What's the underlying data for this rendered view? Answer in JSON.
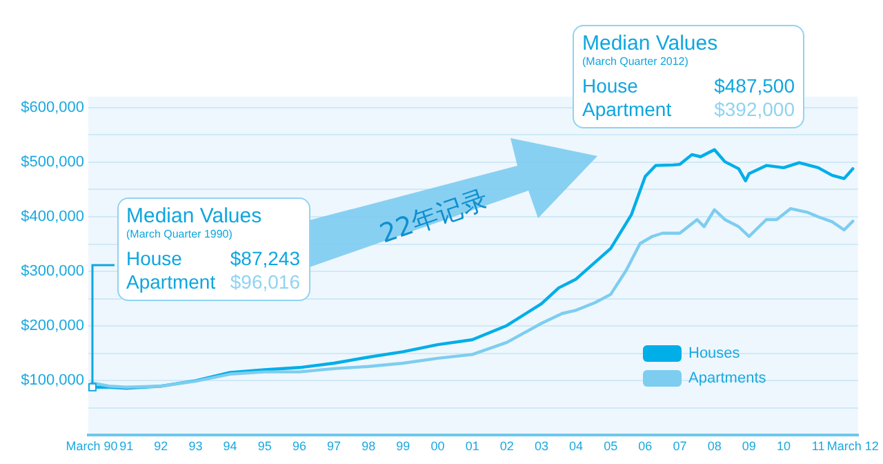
{
  "chart_data": {
    "type": "line",
    "x": [
      1990,
      1990.5,
      1991,
      1992,
      1993,
      1994,
      1995,
      1996,
      1997,
      1998,
      1999,
      2000,
      2001,
      2002,
      2003,
      2003.5,
      2004,
      2005,
      2005.6,
      2006,
      2006.3,
      2006.8,
      2007,
      2007.35,
      2007.6,
      2008,
      2008.3,
      2008.7,
      2008.9,
      2009,
      2009.5,
      2010,
      2010.45,
      2011,
      2011.4,
      2011.75,
      2012
    ],
    "series": [
      {
        "name": "Houses",
        "color": "#00aee8",
        "values": [
          88000,
          88000,
          86000,
          90000,
          100000,
          115000,
          120000,
          124000,
          132000,
          143000,
          153000,
          166000,
          175000,
          201000,
          241000,
          270000,
          286000,
          342000,
          404000,
          474000,
          494000,
          495000,
          496000,
          514000,
          510000,
          523000,
          501000,
          488000,
          466000,
          479000,
          494000,
          490000,
          499000,
          490000,
          476000,
          470000,
          488000
        ]
      },
      {
        "name": "Apartments",
        "color": "#7dcdf0",
        "x": [
          1990,
          1990.5,
          1991,
          1992,
          1993,
          1994,
          1995,
          1996,
          1997,
          1998,
          1999,
          2000,
          2001,
          2002,
          2003,
          2003.6,
          2004,
          2004.55,
          2005,
          2005.45,
          2005.85,
          2006.2,
          2006.5,
          2007,
          2007.5,
          2007.7,
          2008,
          2008.3,
          2008.7,
          2009,
          2009.5,
          2009.8,
          2010.2,
          2010.7,
          2011,
          2011.4,
          2011.75,
          2012
        ],
        "values": [
          96000,
          90000,
          88000,
          90000,
          99000,
          112000,
          116000,
          116000,
          122000,
          126000,
          132000,
          141000,
          148000,
          170000,
          205000,
          223000,
          229000,
          243000,
          258000,
          302000,
          351000,
          364000,
          370000,
          370000,
          395000,
          382000,
          413000,
          395000,
          382000,
          364000,
          395000,
          395000,
          415000,
          408000,
          400000,
          391000,
          376000,
          392000
        ]
      }
    ],
    "xlim": [
      1989.9,
      2012.15
    ],
    "xticks": [
      {
        "value": 1990,
        "label": "March 90"
      },
      {
        "value": 1991,
        "label": "91"
      },
      {
        "value": 1992,
        "label": "92"
      },
      {
        "value": 1993,
        "label": "93"
      },
      {
        "value": 1994,
        "label": "94"
      },
      {
        "value": 1995,
        "label": "95"
      },
      {
        "value": 1996,
        "label": "96"
      },
      {
        "value": 1997,
        "label": "97"
      },
      {
        "value": 1998,
        "label": "98"
      },
      {
        "value": 1999,
        "label": "99"
      },
      {
        "value": 2000,
        "label": "00"
      },
      {
        "value": 2001,
        "label": "01"
      },
      {
        "value": 2002,
        "label": "02"
      },
      {
        "value": 2003,
        "label": "03"
      },
      {
        "value": 2004,
        "label": "04"
      },
      {
        "value": 2005,
        "label": "05"
      },
      {
        "value": 2006,
        "label": "06"
      },
      {
        "value": 2007,
        "label": "07"
      },
      {
        "value": 2008,
        "label": "08"
      },
      {
        "value": 2009,
        "label": "09"
      },
      {
        "value": 2010,
        "label": "10"
      },
      {
        "value": 2011,
        "label": "11"
      },
      {
        "value": 2012,
        "label": "March 12"
      }
    ],
    "ylim": [
      0,
      620000
    ],
    "yticks": [
      {
        "value": 0,
        "label": null
      },
      {
        "value": 50000,
        "label": null
      },
      {
        "value": 100000,
        "label": "$100,000"
      },
      {
        "value": 150000,
        "label": null
      },
      {
        "value": 200000,
        "label": "$200,000"
      },
      {
        "value": 250000,
        "label": null
      },
      {
        "value": 300000,
        "label": "$300,000"
      },
      {
        "value": 350000,
        "label": null
      },
      {
        "value": 400000,
        "label": "$400,000"
      },
      {
        "value": 450000,
        "label": null
      },
      {
        "value": 500000,
        "label": "$500,000"
      },
      {
        "value": 550000,
        "label": null
      },
      {
        "value": 600000,
        "label": "$600,000"
      }
    ],
    "grid": "y",
    "legend": "bottom right",
    "marker": "none",
    "line_style": "solid",
    "annotations": [
      "Median Values",
      "(March Quarter 1990)",
      {
        "text": "House",
        "x": 1990,
        "y": 88000
      },
      "$87,243",
      "Apartment",
      "$96,016",
      "Median Values",
      "(March Quarter 2012)",
      "House",
      "$487,500",
      "Apartment",
      "$392,000",
      "22年记录"
    ]
  }
}
